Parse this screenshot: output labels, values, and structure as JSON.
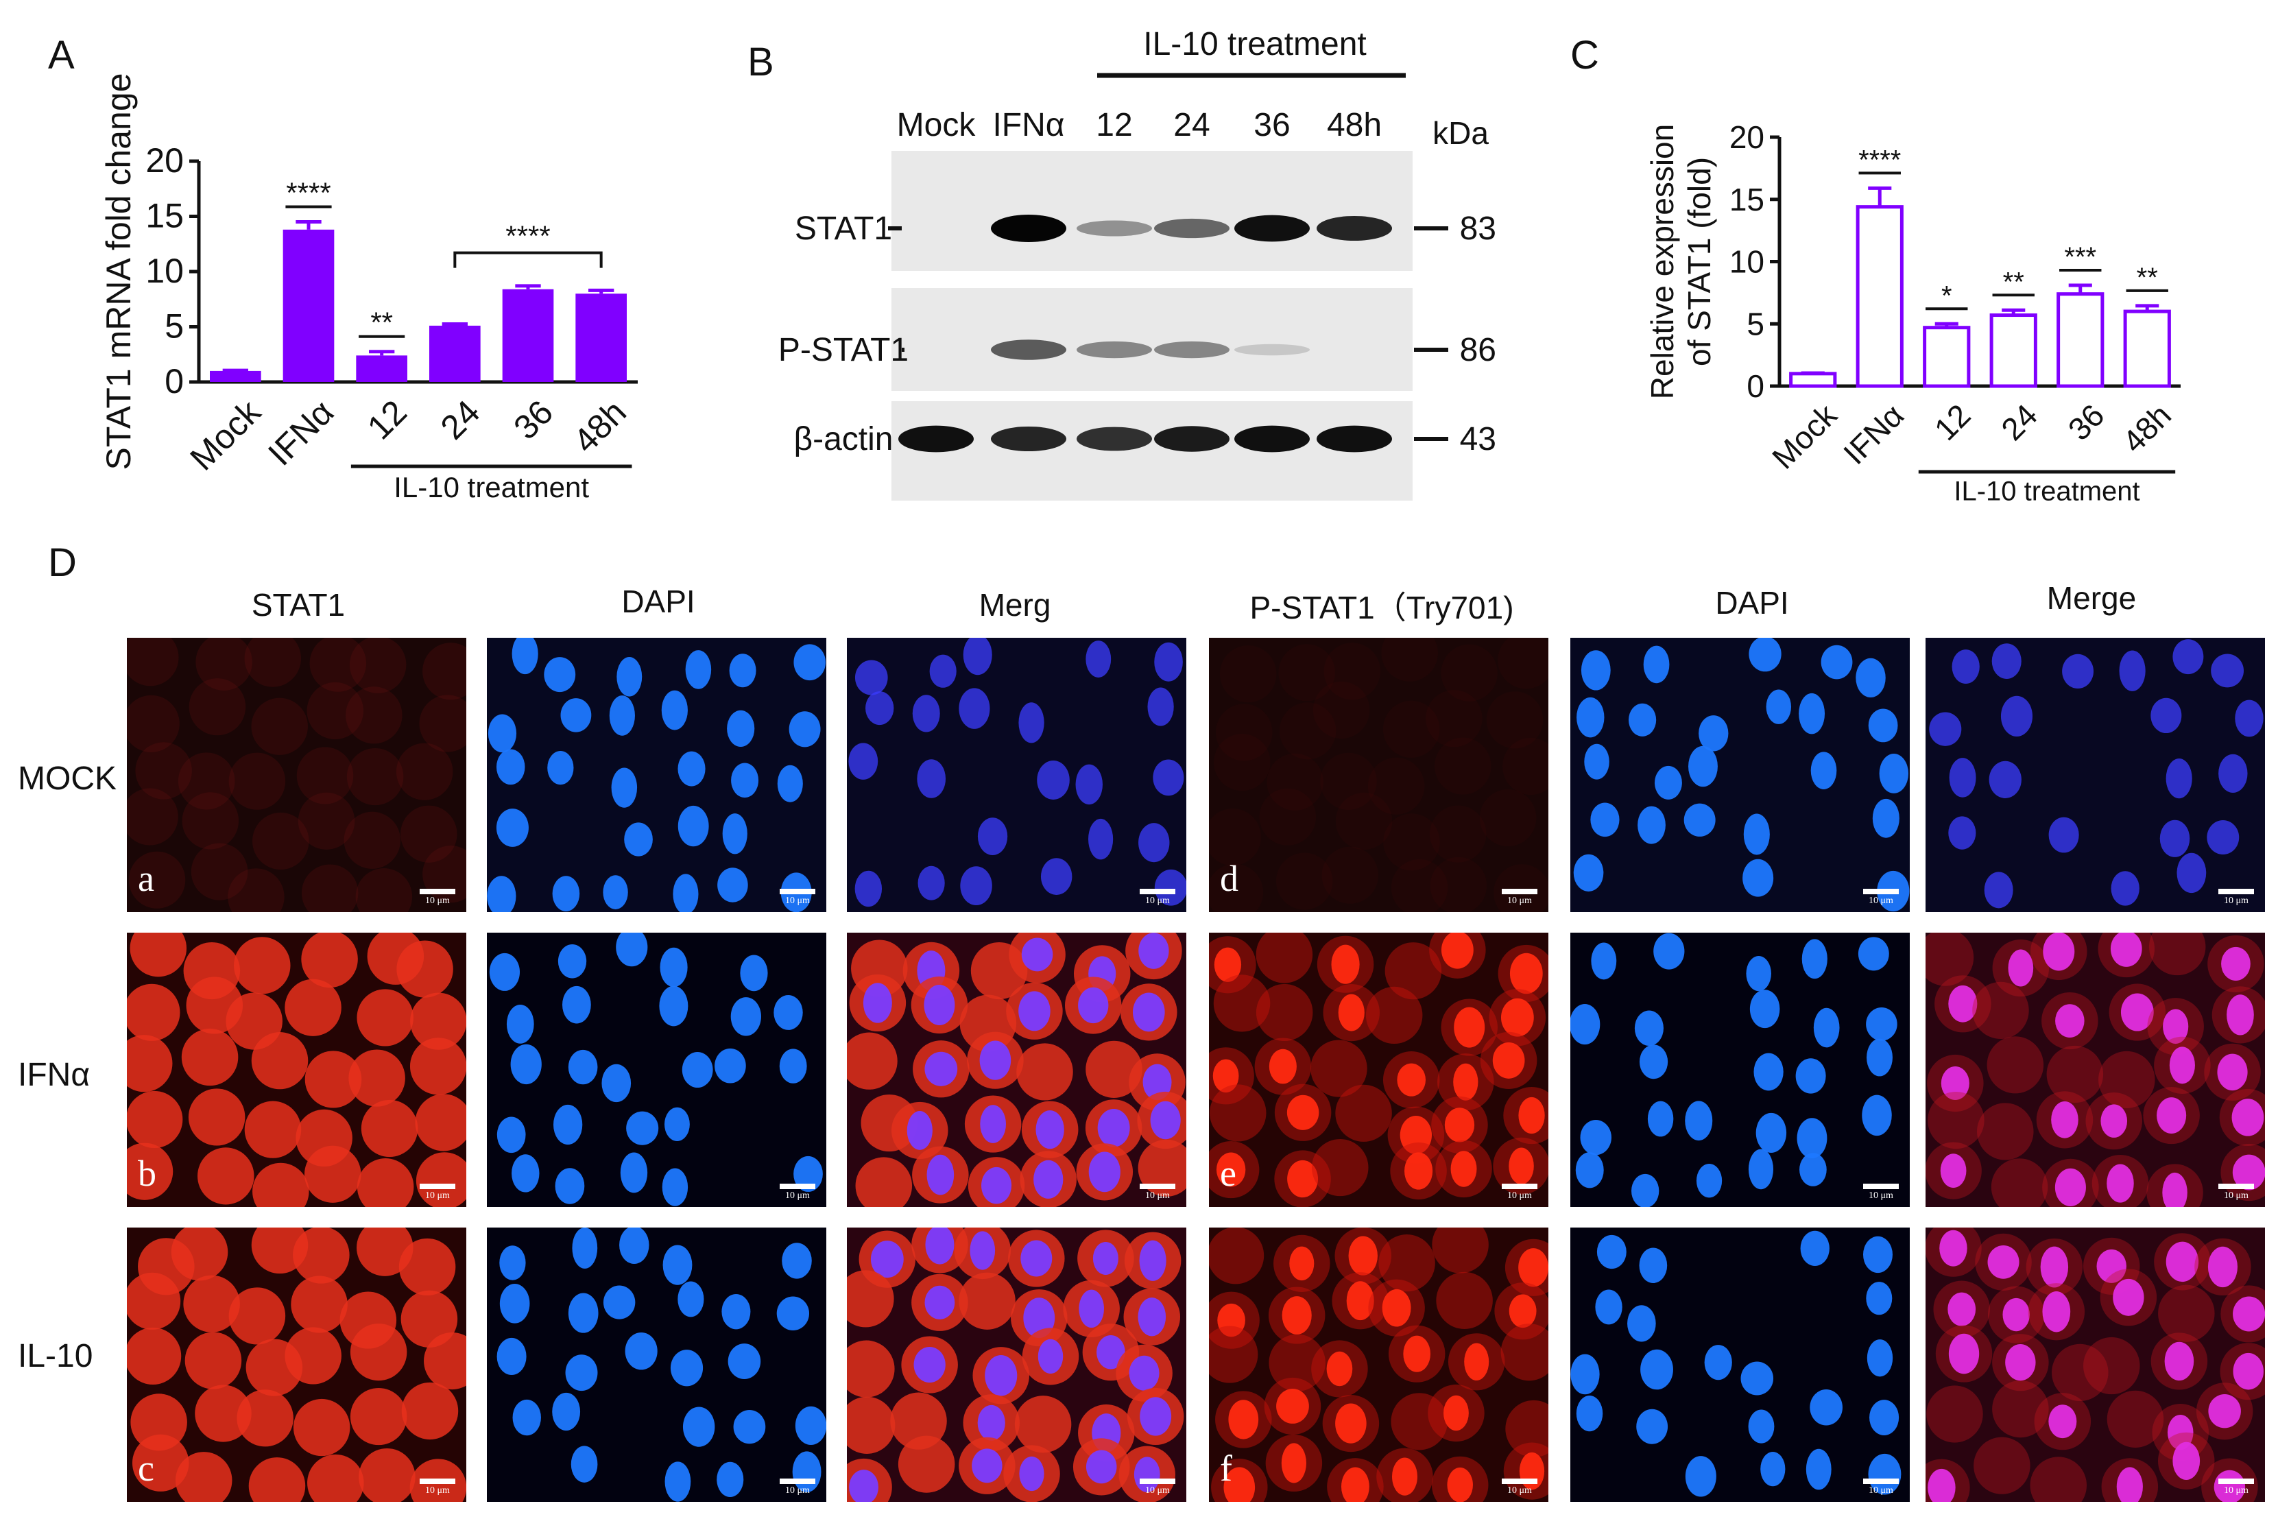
{
  "panel_labels": {
    "A": "A",
    "B": "B",
    "C": "C",
    "D": "D"
  },
  "chart_data": [
    {
      "type": "bar",
      "panel": "A",
      "categories": [
        "Mock",
        "IFNα",
        "12",
        "24",
        "36",
        "48h"
      ],
      "values": [
        1.0,
        13.8,
        2.4,
        5.1,
        8.4,
        8.0
      ],
      "errors": [
        0.05,
        0.7,
        0.35,
        0.15,
        0.3,
        0.3
      ],
      "significance": [
        "",
        "****",
        "**",
        "",
        "",
        ""
      ],
      "bracket": {
        "from": "24",
        "to": "48h",
        "label": "****"
      },
      "group_label": "IL-10 treatment",
      "ylabel": "STAT1 mRNA fold change",
      "xlabel": "",
      "ylim": [
        0,
        20
      ],
      "yticks": [
        0,
        5,
        10,
        15,
        20
      ],
      "bar_color": "#8000ff",
      "fill": "solid"
    },
    {
      "type": "bar",
      "panel": "C",
      "categories": [
        "Mock",
        "IFNα",
        "12",
        "24",
        "36",
        "48h"
      ],
      "values": [
        1.0,
        14.4,
        4.7,
        5.7,
        7.4,
        6.0
      ],
      "errors": [
        0.05,
        1.5,
        0.3,
        0.4,
        0.7,
        0.45
      ],
      "significance": [
        "",
        "****",
        "*",
        "**",
        "***",
        "**"
      ],
      "group_label": "IL-10 treatment",
      "ylabel": "Relative expression\nof STAT1 (fold)",
      "ylabel_lines": [
        "Relative expression",
        "of STAT1 (fold)"
      ],
      "xlabel": "",
      "ylim": [
        0,
        20
      ],
      "yticks": [
        0,
        5,
        10,
        15,
        20
      ],
      "bar_color": "#8000ff",
      "fill": "outline"
    }
  ],
  "western": {
    "group_label": "IL-10 treatment",
    "lanes": [
      "Mock",
      "IFNα",
      "12",
      "24",
      "36",
      "48h"
    ],
    "kda_label": "kDa",
    "rows": [
      {
        "label": "STAT1",
        "kda": "83",
        "intensity": [
          0.0,
          1.0,
          0.35,
          0.55,
          0.95,
          0.85
        ]
      },
      {
        "label": "P-STAT1",
        "kda": "86",
        "intensity": [
          0.0,
          0.6,
          0.4,
          0.4,
          0.1,
          0.0
        ]
      },
      {
        "label": "β-actin",
        "kda": "43",
        "intensity": [
          0.95,
          0.85,
          0.8,
          0.9,
          0.95,
          0.95
        ]
      }
    ]
  },
  "micrographs": {
    "column_titles": [
      "STAT1",
      "DAPI",
      "Merg",
      "P-STAT1（Try701)",
      "DAPI",
      "Merge"
    ],
    "row_labels": [
      "MOCK",
      "IFNα",
      "IL-10"
    ],
    "panel_letters": [
      "a",
      "d",
      "b",
      "e",
      "c",
      "f"
    ],
    "scale_bar_label": "10 μm",
    "colors": {
      "red": "#ff2a10",
      "blue": "#1e78ff",
      "magenta": "#e02ee0",
      "dark": "#0b0205"
    }
  }
}
